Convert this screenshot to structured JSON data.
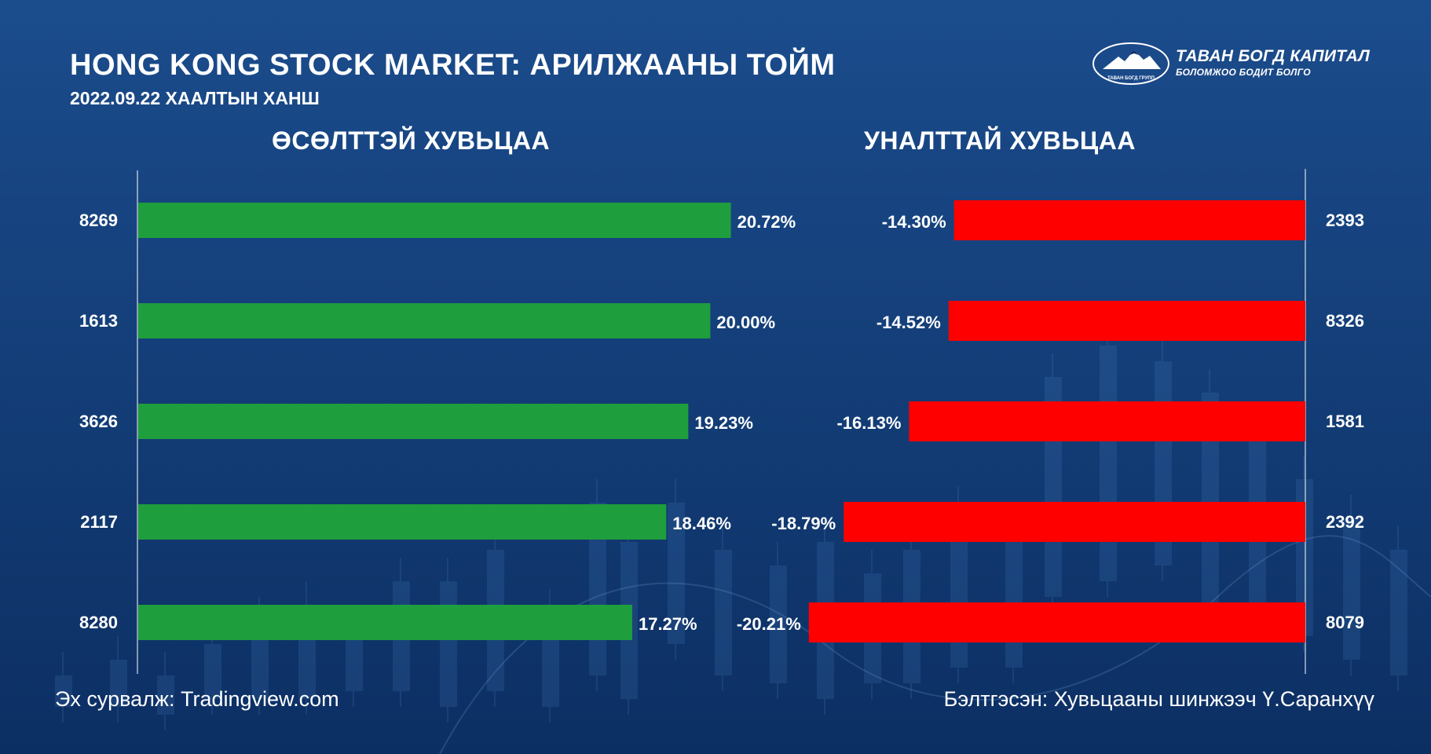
{
  "header": {
    "title": "HONG KONG STOCK MARKET: АРИЛЖААНЫ ТОЙМ",
    "subtitle": "2022.09.22 ХААЛТЫН ХАНШ"
  },
  "logo": {
    "name": "ТАВАН БОГД КАПИТАЛ",
    "tagline": "БОЛОМЖОО БОДИТ БОЛГО",
    "emblem_text": "ТАВАН БОГД ГРУПП"
  },
  "footer": {
    "source": "Эх сурвалж: Tradingview.com",
    "author": "Бэлтгэсэн: Хувьцааны шинжээч Ү.Саранхүү"
  },
  "colors": {
    "background_top": "#1b4c8c",
    "background_bottom": "#0c2f63",
    "gainers_bar": "#1e9e3c",
    "losers_bar": "#ff0000",
    "text": "#ffffff"
  },
  "chart_data": [
    {
      "type": "bar",
      "orientation": "horizontal",
      "title": "ӨСӨЛТТЭЙ ХУВЬЦАА",
      "categories": [
        "8269",
        "1613",
        "3626",
        "2117",
        "8280"
      ],
      "values": [
        20.72,
        20.0,
        19.23,
        18.46,
        17.27
      ],
      "labels": [
        "20.72%",
        "20.00%",
        "19.23%",
        "18.46%",
        "17.27%"
      ],
      "xlim": [
        0,
        24.3
      ],
      "grid": false
    },
    {
      "type": "bar",
      "orientation": "horizontal",
      "title": "УНАЛТТАЙ ХУВЬЦАА",
      "categories": [
        "2393",
        "8326",
        "1581",
        "2392",
        "8079"
      ],
      "values": [
        -14.3,
        -14.52,
        -16.13,
        -18.79,
        -20.21
      ],
      "labels": [
        "-14.30%",
        "-14.52%",
        "-16.13%",
        "-18.79%",
        "-20.21%"
      ],
      "xlim": [
        -24.2,
        0
      ],
      "grid": false
    }
  ]
}
